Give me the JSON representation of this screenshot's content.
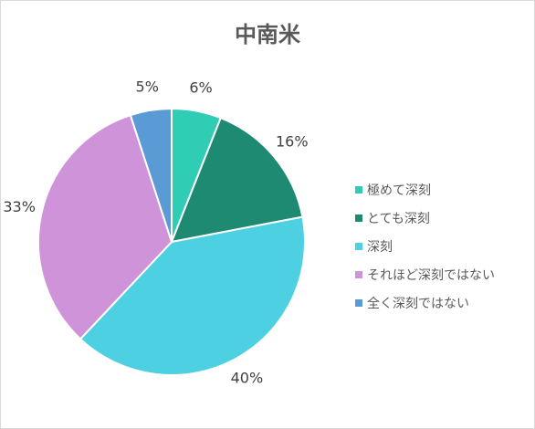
{
  "chart_data": {
    "type": "pie",
    "title": "中南米",
    "categories": [
      "極めて深刻",
      "とても深刻",
      "深刻",
      "それほど深刻ではない",
      "全く深刻ではない"
    ],
    "values": [
      6,
      16,
      40,
      33,
      5
    ],
    "data_labels": [
      "6%",
      "16%",
      "40%",
      "33%",
      "5%"
    ],
    "colors": [
      "#2ecdb4",
      "#1f8a72",
      "#4dd0e1",
      "#ce93d8",
      "#5b9bd5"
    ],
    "legend_position": "right",
    "start_angle": "12 o'clock",
    "direction": "clockwise"
  }
}
